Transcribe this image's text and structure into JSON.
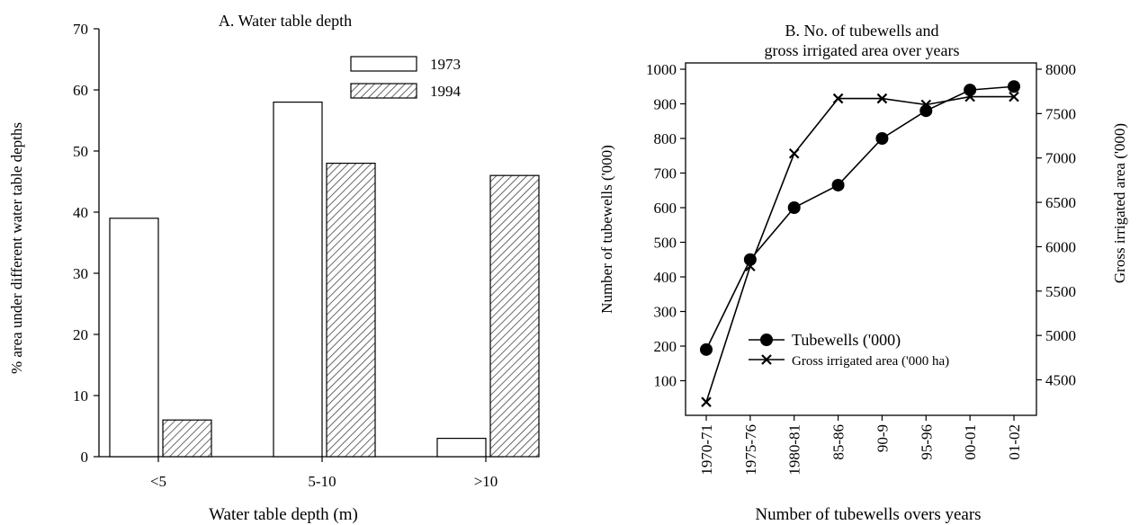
{
  "chart_data": [
    {
      "type": "bar",
      "title": "A. Water table depth",
      "xlabel": "Water table depth (m)",
      "ylabel": "% area under different water table depths",
      "categories": [
        "<5",
        "5-10",
        ">10"
      ],
      "ylim": [
        0,
        70
      ],
      "yticks": [
        0,
        10,
        20,
        30,
        40,
        50,
        60,
        70
      ],
      "grid": false,
      "legend_position": "top-right",
      "series": [
        {
          "name": "1973",
          "values": [
            39,
            58,
            3
          ],
          "fill": "none"
        },
        {
          "name": "1994",
          "values": [
            6,
            48,
            46
          ],
          "fill": "hatched"
        }
      ]
    },
    {
      "type": "line",
      "title_lines": [
        "B. No. of tubewells and",
        "gross irrigated area over years"
      ],
      "xlabel": "Number of tubewells overs years",
      "ylabel_left": "Number of tubewells ('000)",
      "ylabel_right": "Gross irrigated area ('000)",
      "categories": [
        "1970-71",
        "1975-76",
        "1980-81",
        "85-86",
        "90-9",
        "95-96",
        "00-01",
        "01-02"
      ],
      "ylim_left": [
        0,
        1000
      ],
      "yticks_left": [
        100,
        200,
        300,
        400,
        500,
        600,
        700,
        800,
        900,
        1000
      ],
      "ylim_right": [
        4100,
        8000
      ],
      "yticks_right": [
        4500,
        5000,
        5500,
        6000,
        6500,
        7000,
        7500,
        8000
      ],
      "grid": false,
      "legend_position": "bottom-right",
      "series": [
        {
          "name": "Tubewells ('000)",
          "axis": "left",
          "marker": "circle",
          "values": [
            190,
            450,
            600,
            665,
            800,
            880,
            940,
            950
          ]
        },
        {
          "name": "Gross irrigated area ('000 ha)",
          "axis": "right",
          "marker": "x",
          "values": [
            4250,
            5780,
            7050,
            7670,
            7670,
            7600,
            7690,
            7690
          ]
        }
      ]
    }
  ]
}
